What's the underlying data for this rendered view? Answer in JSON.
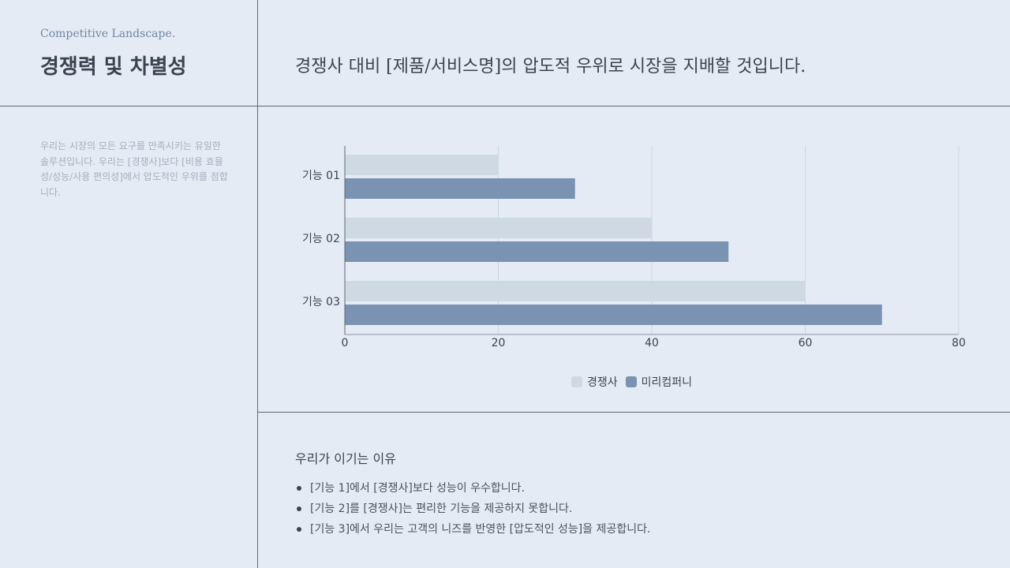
{
  "header": {
    "subtitle": "Competitive Landscape.",
    "title": "경쟁력 및 차별성",
    "headline": "경쟁사 대비 [제품/서비스명]의 압도적 우위로 시장을 지배할 것입니다."
  },
  "description": "우리는 시장의 모든 요구를 만족시키는 유일한 솔루션입니다. 우리는 [경쟁사]보다 [비용 효율성/성능/사용 편의성]에서 압도적인 우위를 점합니다.",
  "chart_data": {
    "type": "bar",
    "orientation": "horizontal",
    "categories": [
      "기능 01",
      "기능 02",
      "기능 03"
    ],
    "series": [
      {
        "name": "경쟁사",
        "values": [
          20,
          40,
          60
        ],
        "color": "#cfd9e3"
      },
      {
        "name": "미리컴퍼니",
        "values": [
          30,
          50,
          70
        ],
        "color": "#7a93b3"
      }
    ],
    "xlim": [
      0,
      80
    ],
    "xticks": [
      0,
      20,
      40,
      60,
      80
    ],
    "grid": true,
    "legend": "bottom"
  },
  "reasons": {
    "title": "우리가 이기는 이유",
    "items": [
      "[기능 1]에서 [경쟁사]보다 성능이 우수합니다.",
      "[기능 2]를 [경쟁사]는 편리한 기능을 제공하지 못합니다.",
      "[기능 3]에서 우리는 고객의 니즈를 반영한 [압도적인 성능]을 제공합니다."
    ]
  }
}
